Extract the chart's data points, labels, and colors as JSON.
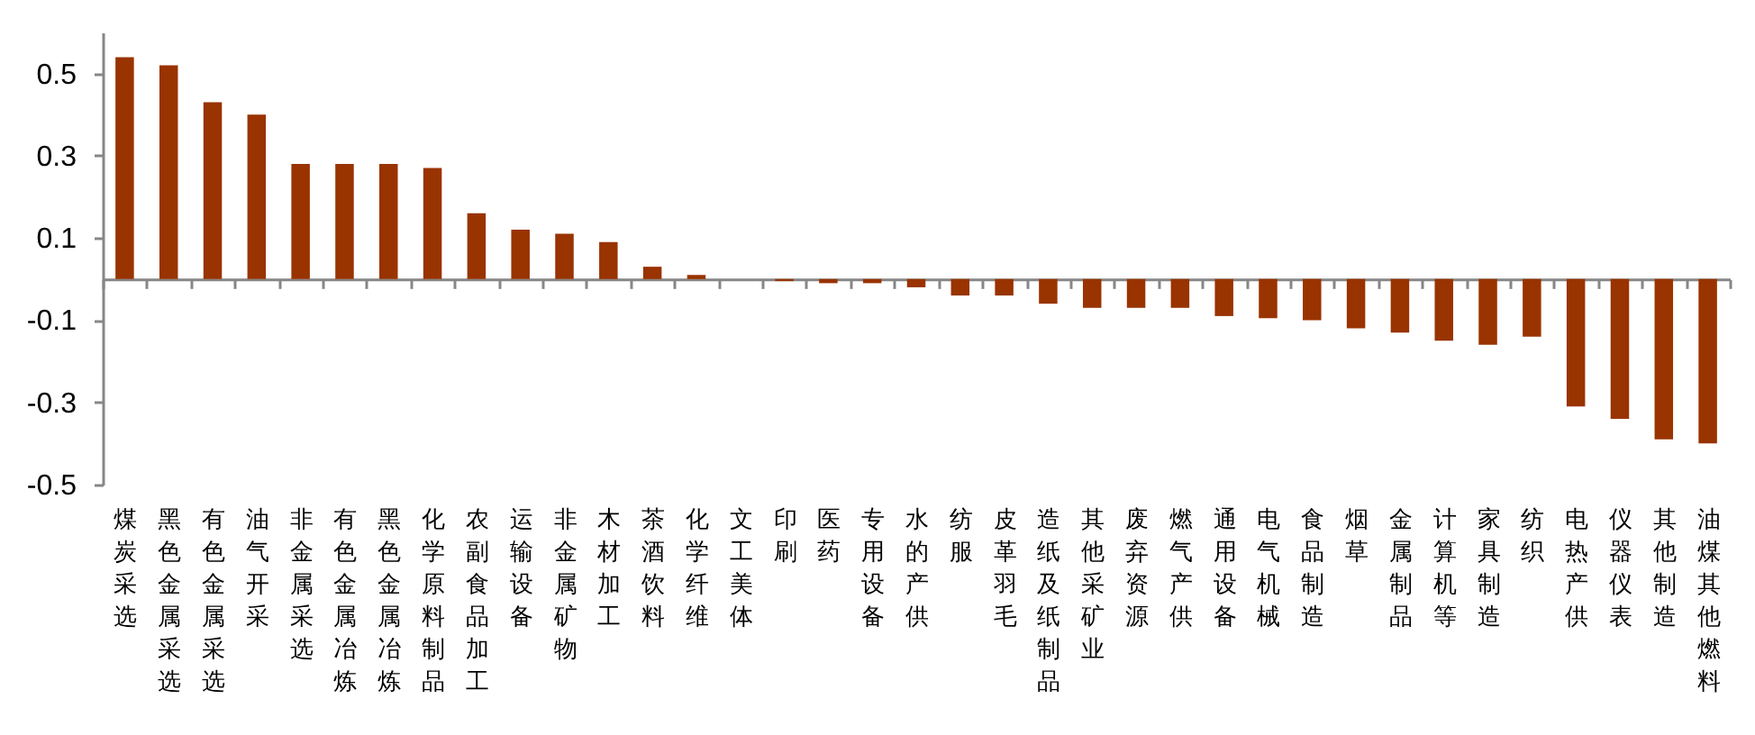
{
  "chart_data": {
    "type": "bar",
    "categories": [
      "煤炭采选",
      "黑色金属采选",
      "有色金属采选",
      "油气开采",
      "非金属采选",
      "有色金属冶炼",
      "黑色金属冶炼",
      "化学原料制品",
      "农副食品加工",
      "运输设备",
      "非金属矿物",
      "木材加工",
      "茶酒饮料",
      "化学纤维",
      "文工美体",
      "印刷",
      "医药",
      "专用设备",
      "水的产供",
      "纺服",
      "皮革羽毛",
      "造纸及纸制品",
      "其他采矿业",
      "废弃资源",
      "燃气产供",
      "通用设备",
      "电气机械",
      "食品制造",
      "烟草",
      "金属制品",
      "计算机等",
      "家具制造",
      "纺织",
      "电热产供",
      "仪器仪表",
      "其他制造",
      "油煤其他燃料"
    ],
    "values": [
      0.54,
      0.52,
      0.43,
      0.4,
      0.28,
      0.28,
      0.28,
      0.27,
      0.16,
      0.12,
      0.11,
      0.09,
      0.03,
      0.01,
      0,
      -0.005,
      -0.01,
      -0.01,
      -0.02,
      -0.04,
      -0.04,
      -0.06,
      -0.07,
      -0.07,
      -0.07,
      -0.09,
      -0.095,
      -0.1,
      -0.12,
      -0.13,
      -0.15,
      -0.16,
      -0.14,
      -0.31,
      -0.34,
      -0.39,
      -0.4
    ],
    "color": "#993300",
    "ylim": [
      -0.5,
      0.6
    ],
    "yticks": [
      -0.5,
      -0.3,
      -0.1,
      0.1,
      0.3,
      0.5
    ],
    "grid": false
  }
}
